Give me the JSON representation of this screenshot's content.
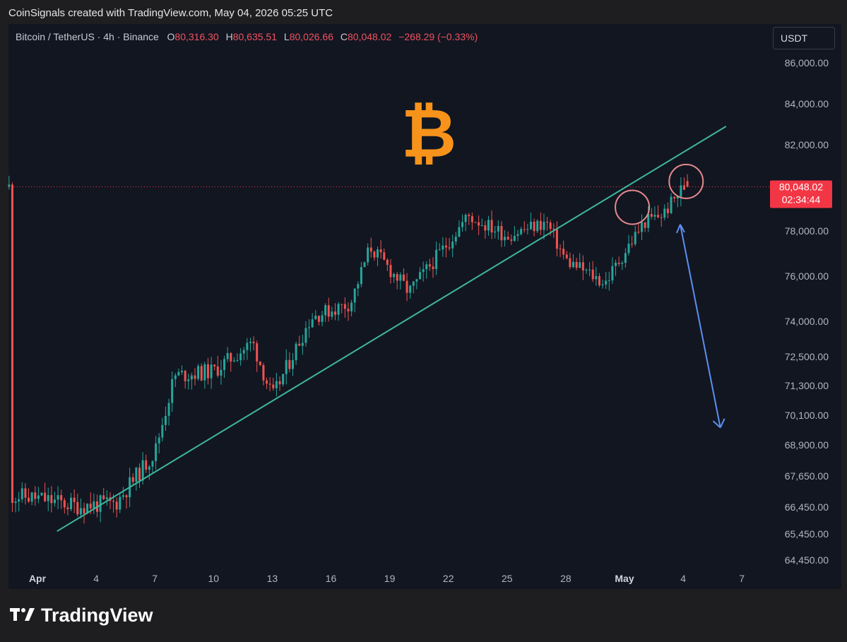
{
  "header": {
    "caption": "CoinSignals created with TradingView.com, May 04, 2026 05:25 UTC"
  },
  "legend": {
    "symbol": "Bitcoin / TetherUS · 4h · Binance",
    "open_label": "O",
    "open": "80,316.30",
    "high_label": "H",
    "high": "80,635.51",
    "low_label": "L",
    "low": "80,026.66",
    "close_label": "C",
    "close": "80,048.02",
    "change": "−268.29 (−0.33%)"
  },
  "currency_button": "USDT",
  "price_tag": {
    "price": "80,048.02",
    "countdown": "02:34:44",
    "color": "#f23645"
  },
  "brand": {
    "name": "TradingView"
  },
  "colors": {
    "up": "#26a69a",
    "down": "#ef5350",
    "trendline": "#3fb59b",
    "arrow": "#5b8ff0",
    "circle": "#e58a8e",
    "bitcoin": "#f7931a"
  },
  "chart_data": {
    "type": "candlestick",
    "timeframe": "4h",
    "x_ticks": [
      "Apr",
      "4",
      "7",
      "10",
      "13",
      "16",
      "19",
      "22",
      "25",
      "28",
      "May",
      "4",
      "7"
    ],
    "y_ticks": [
      "86,000.00",
      "84,000.00",
      "82,000.00",
      "78,000.00",
      "76,000.00",
      "74,000.00",
      "72,500.00",
      "71,300.00",
      "70,100.00",
      "68,900.00",
      "67,650.00",
      "66,450.00",
      "65,450.00",
      "64,450.00"
    ],
    "last_price": 80048.02,
    "ohlc_last": {
      "open": 80316.3,
      "high": 80635.51,
      "low": 80026.66,
      "close": 80048.02
    },
    "trend_points": [
      {
        "date": "Apr 1",
        "close": 66800
      },
      {
        "date": "Apr 3",
        "close": 66500
      },
      {
        "date": "Apr 5",
        "close": 66600
      },
      {
        "date": "Apr 7",
        "close": 68600
      },
      {
        "date": "Apr 8",
        "close": 71700
      },
      {
        "date": "Apr 10",
        "close": 71900
      },
      {
        "date": "Apr 12",
        "close": 73100
      },
      {
        "date": "Apr 13",
        "close": 70800
      },
      {
        "date": "Apr 15",
        "close": 74200
      },
      {
        "date": "Apr 17",
        "close": 74800
      },
      {
        "date": "Apr 18",
        "close": 77300
      },
      {
        "date": "Apr 20",
        "close": 75300
      },
      {
        "date": "Apr 22",
        "close": 77500
      },
      {
        "date": "Apr 23",
        "close": 78700
      },
      {
        "date": "Apr 25",
        "close": 77800
      },
      {
        "date": "Apr 27",
        "close": 78400
      },
      {
        "date": "Apr 28",
        "close": 76700
      },
      {
        "date": "Apr 30",
        "close": 75700
      },
      {
        "date": "May 2",
        "close": 78400
      },
      {
        "date": "May 3",
        "close": 78800
      },
      {
        "date": "May 4",
        "close": 80048
      }
    ],
    "annotations": {
      "trendline": [
        {
          "date": "Apr 2",
          "price": 65550
        },
        {
          "date": "May 5",
          "price": 82900
        }
      ],
      "circles": [
        {
          "date": "May 1",
          "price": 79100
        },
        {
          "date": "May 4",
          "price": 80300
        }
      ],
      "arrow": {
        "from": {
          "date": "May 3",
          "price": 78300
        },
        "to": {
          "date": "May 5",
          "price": 69600
        }
      }
    }
  }
}
